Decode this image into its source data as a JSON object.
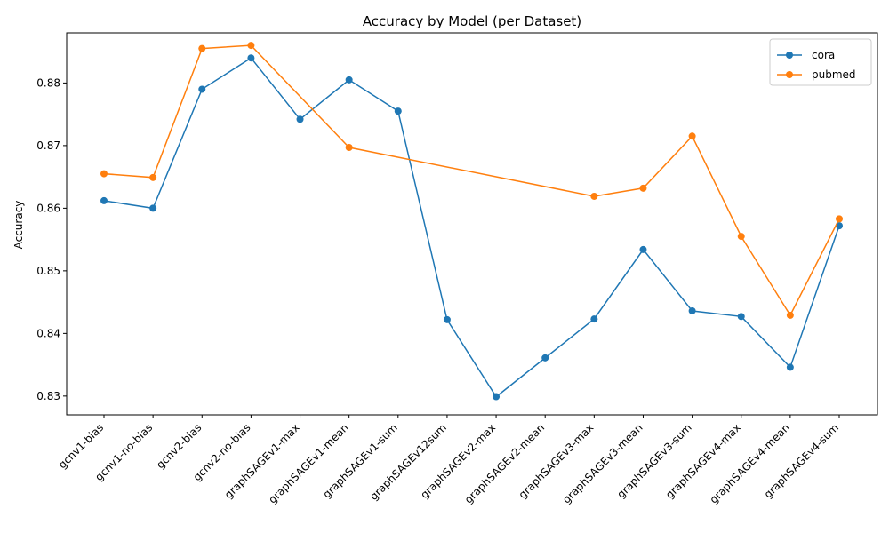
{
  "chart_data": {
    "type": "line",
    "title": "Accuracy by Model (per Dataset)",
    "xlabel": "",
    "ylabel": "Accuracy",
    "ylim": [
      0.827,
      0.888
    ],
    "yticks": [
      0.83,
      0.84,
      0.85,
      0.86,
      0.87,
      0.88
    ],
    "ytick_labels": [
      "0.83",
      "0.84",
      "0.85",
      "0.86",
      "0.87",
      "0.88"
    ],
    "grid": false,
    "legend_position": "top-right",
    "categories": [
      "gcnv1-bias",
      "gcnv1-no-bias",
      "gcnv2-bias",
      "gcnv2-no-bias",
      "graphSAGEv1-max",
      "graphSAGEv1-mean",
      "graphSAGEv1-sum",
      "graphSAGEv12sum",
      "graphSAGEv2-max",
      "graphSAGEv2-mean",
      "graphSAGEv3-max",
      "graphSAGEv3-mean",
      "graphSAGEv3-sum",
      "graphSAGEv4-max",
      "graphSAGEv4-mean",
      "graphSAGEv4-sum"
    ],
    "series": [
      {
        "name": "cora",
        "color": "#1f77b4",
        "values": [
          0.8612,
          0.86,
          0.879,
          0.884,
          0.8742,
          0.8805,
          0.8755,
          0.8422,
          0.8299,
          0.8361,
          0.8423,
          0.8534,
          0.8436,
          0.8427,
          0.8346,
          0.8572
        ]
      },
      {
        "name": "pubmed",
        "color": "#ff7f0e",
        "values": [
          0.8655,
          0.8649,
          0.8855,
          0.886,
          null,
          0.8697,
          null,
          null,
          null,
          null,
          0.8619,
          0.8632,
          0.8715,
          0.8555,
          0.8429,
          0.8583
        ]
      }
    ]
  }
}
